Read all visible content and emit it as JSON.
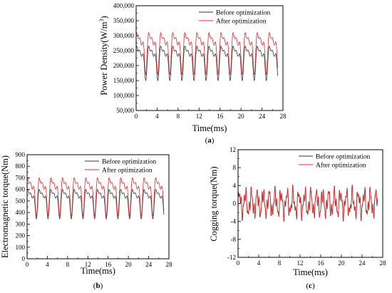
{
  "colors": {
    "before": "#333333",
    "after": "#e8262a",
    "frame": "#000000"
  },
  "chart_data": [
    {
      "type": "line",
      "panel_label": "(a)",
      "panel_letter": "a",
      "xlabel": "Time(ms)",
      "ylabel_prefix": "Power Density(W/m",
      "ylabel_sup": "3",
      "ylabel_suffix": ")",
      "xlim": [
        0,
        28
      ],
      "ylim": [
        50000,
        400000
      ],
      "xticks": [
        0,
        4,
        8,
        12,
        16,
        20,
        24,
        28
      ],
      "yticks": [
        50000,
        100000,
        150000,
        200000,
        250000,
        300000,
        350000,
        400000
      ],
      "ytick_labels": [
        "50,000",
        "100,000",
        "150,000",
        "200,000",
        "250,000",
        "300,000",
        "350,000",
        "400,000"
      ],
      "legend_position": "top-right",
      "grid": false,
      "series": [
        {
          "name": "Before optimization",
          "period_ms": 2.3,
          "x_end": 27,
          "min": 150000,
          "max": 265000,
          "mean": 205000
        },
        {
          "name": "After optimization",
          "period_ms": 2.3,
          "x_end": 27,
          "min": 170000,
          "max": 310000,
          "mean": 230000
        }
      ]
    },
    {
      "type": "line",
      "panel_label": "(b)",
      "panel_letter": "b",
      "xlabel": "Time(ms)",
      "ylabel": "Electromagnetic torque(Nm)",
      "xlim": [
        0,
        28
      ],
      "ylim": [
        0,
        900
      ],
      "xticks": [
        0,
        4,
        8,
        12,
        16,
        20,
        24,
        28
      ],
      "yticks": [
        0,
        100,
        200,
        300,
        400,
        500,
        600,
        700,
        800,
        900
      ],
      "legend_position": "top-right",
      "grid": false,
      "series": [
        {
          "name": "Before optimization",
          "period_ms": 2.3,
          "x_end": 27,
          "min": 345,
          "max": 600,
          "mean": 465
        },
        {
          "name": "After optimization",
          "period_ms": 2.3,
          "x_end": 27,
          "min": 370,
          "max": 700,
          "mean": 520
        }
      ]
    },
    {
      "type": "line",
      "panel_label": "(c)",
      "panel_letter": "c",
      "xlabel": "Time(ms)",
      "ylabel": "Cogging torque(Nm)",
      "xlim": [
        0,
        28
      ],
      "ylim": [
        -12,
        12
      ],
      "xticks": [
        0,
        4,
        8,
        12,
        16,
        20,
        24,
        28
      ],
      "yticks": [
        -12,
        -8,
        -4,
        0,
        4,
        8,
        12
      ],
      "legend_position": "top-right",
      "grid": false,
      "series": [
        {
          "name": "Before optimization",
          "period_ms": 1.15,
          "x_end": 27,
          "min": -4,
          "max": 4.2,
          "mean": 0.3
        },
        {
          "name": "After optimization",
          "period_ms": 1.15,
          "x_end": 27,
          "min": -4,
          "max": 4.2,
          "mean": 0.3
        }
      ]
    }
  ]
}
